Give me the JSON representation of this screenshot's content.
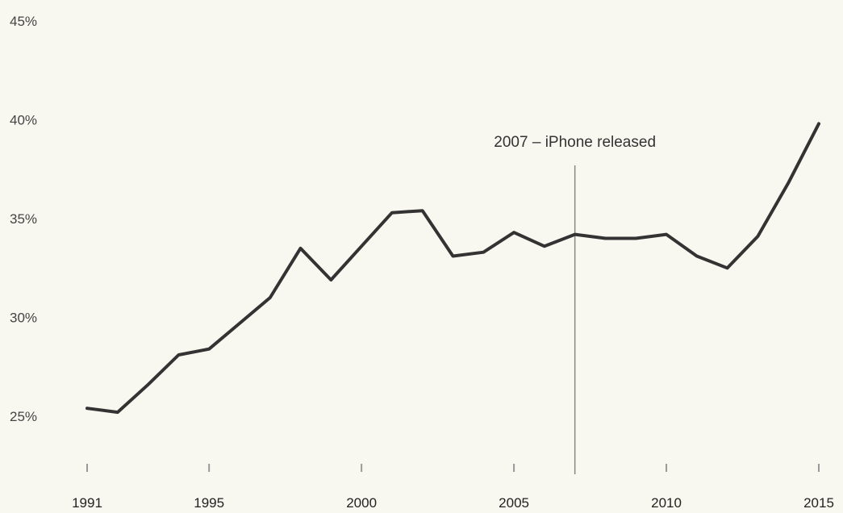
{
  "chart_data": {
    "type": "line",
    "title": "",
    "xlabel": "",
    "ylabel": "",
    "xlim": [
      1991,
      2015
    ],
    "ylim": [
      21,
      45
    ],
    "grid": false,
    "y_ticks": [
      {
        "value": 25,
        "label": "25%"
      },
      {
        "value": 30,
        "label": "30%"
      },
      {
        "value": 35,
        "label": "35%"
      },
      {
        "value": 40,
        "label": "40%"
      },
      {
        "value": 45,
        "label": "45%"
      }
    ],
    "x_ticks": [
      {
        "value": 1991,
        "label": "1991"
      },
      {
        "value": 1995,
        "label": "1995"
      },
      {
        "value": 2000,
        "label": "2000"
      },
      {
        "value": 2005,
        "label": "2005"
      },
      {
        "value": 2010,
        "label": "2010"
      },
      {
        "value": 2015,
        "label": "2015"
      }
    ],
    "series": [
      {
        "color": "#333333",
        "x": [
          1991,
          1992,
          1993,
          1994,
          1995,
          1996,
          1997,
          1998,
          1999,
          2000,
          2001,
          2002,
          2003,
          2004,
          2005,
          2006,
          2007,
          2008,
          2009,
          2010,
          2011,
          2012,
          2013,
          2014,
          2015
        ],
        "y": [
          25.4,
          25.2,
          26.6,
          28.1,
          28.4,
          29.7,
          31.0,
          33.5,
          31.9,
          33.6,
          35.3,
          35.4,
          33.1,
          33.3,
          34.3,
          33.6,
          34.2,
          34.0,
          34.0,
          34.2,
          33.1,
          32.5,
          34.1,
          36.8,
          39.8
        ]
      }
    ],
    "annotations": [
      {
        "x": 2007,
        "text": "2007 – iPhone released",
        "color": "#888888"
      }
    ]
  }
}
